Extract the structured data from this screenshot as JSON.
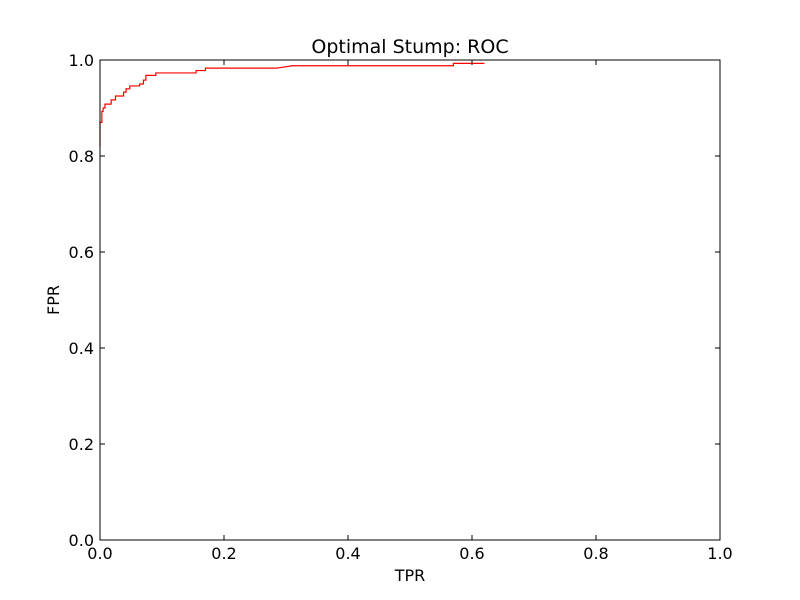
{
  "chart_data": {
    "type": "line",
    "title": "Optimal Stump: ROC",
    "xlabel": "TPR",
    "ylabel": "FPR",
    "xlim": [
      0.0,
      1.0
    ],
    "ylim": [
      0.0,
      1.0
    ],
    "grid": false,
    "xticks": [
      "0.0",
      "0.2",
      "0.4",
      "0.6",
      "0.8",
      "1.0"
    ],
    "yticks": [
      "0.0",
      "0.2",
      "0.4",
      "0.6",
      "0.8",
      "1.0"
    ],
    "series": [
      {
        "color": "#ff0000",
        "x": [
          0.0,
          0.0,
          0.003,
          0.003,
          0.005,
          0.005,
          0.008,
          0.008,
          0.018,
          0.018,
          0.025,
          0.025,
          0.038,
          0.038,
          0.042,
          0.042,
          0.048,
          0.048,
          0.064,
          0.064,
          0.07,
          0.07,
          0.074,
          0.074,
          0.09,
          0.09,
          0.155,
          0.155,
          0.17,
          0.17,
          0.285,
          0.31,
          0.57,
          0.57,
          0.62
        ],
        "y": [
          0.82,
          0.87,
          0.87,
          0.893,
          0.893,
          0.9,
          0.9,
          0.908,
          0.908,
          0.917,
          0.917,
          0.925,
          0.925,
          0.933,
          0.933,
          0.94,
          0.94,
          0.946,
          0.946,
          0.95,
          0.95,
          0.958,
          0.958,
          0.968,
          0.968,
          0.973,
          0.973,
          0.978,
          0.978,
          0.983,
          0.983,
          0.988,
          0.988,
          0.993,
          0.993
        ]
      }
    ]
  }
}
